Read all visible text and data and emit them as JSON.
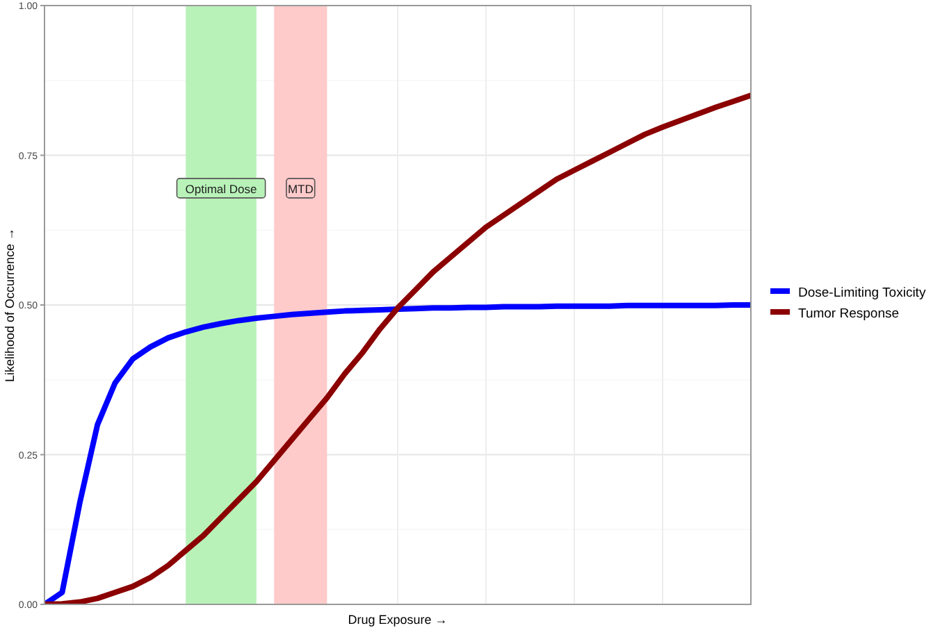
{
  "chart_data": {
    "type": "line",
    "xlabel": "Drug Exposure →",
    "ylabel": "Likelihood of Occurrence →",
    "categories": [
      null,
      null,
      null,
      null,
      null,
      null,
      null,
      null,
      null,
      null,
      null,
      null,
      null,
      null,
      null,
      null,
      null,
      null,
      null,
      null,
      null,
      null,
      null,
      null,
      null,
      null,
      null,
      null,
      null,
      null,
      null,
      null,
      null,
      null,
      null,
      null,
      null,
      null,
      null,
      null,
      null
    ],
    "ylim": [
      0,
      1
    ],
    "yticks": [
      {
        "value": 0,
        "label": "0.00"
      },
      {
        "value": 0.25,
        "label": "0.25"
      },
      {
        "value": 0.5,
        "label": "0.50"
      },
      {
        "value": 0.75,
        "label": "0.75"
      },
      {
        "value": 1,
        "label": "1.00"
      }
    ],
    "grid": true,
    "legend": "right",
    "line_style": "solid",
    "annotations": [
      "Optimal Dose",
      "MTD"
    ],
    "series": [
      {
        "name": "Dose-Limiting Toxicity",
        "color": "#0000ff",
        "values": [
          0,
          0.02,
          0.17,
          0.3,
          0.37,
          0.41,
          0.43,
          0.445,
          0.455,
          0.463,
          0.469,
          0.474,
          0.478,
          0.481,
          0.484,
          0.486,
          0.488,
          0.49,
          0.491,
          0.492,
          0.493,
          0.494,
          0.495,
          0.495,
          0.496,
          0.496,
          0.497,
          0.497,
          0.497,
          0.498,
          0.498,
          0.498,
          0.498,
          0.499,
          0.499,
          0.499,
          0.499,
          0.499,
          0.499,
          0.5,
          0.5
        ]
      },
      {
        "name": "Tumor Response",
        "color": "#8b0000",
        "values": [
          0,
          0.001,
          0.004,
          0.01,
          0.02,
          0.03,
          0.045,
          0.065,
          0.09,
          0.115,
          0.145,
          0.175,
          0.205,
          0.24,
          0.275,
          0.31,
          0.345,
          0.385,
          0.42,
          0.46,
          0.495,
          0.525,
          0.555,
          0.58,
          0.605,
          0.63,
          0.65,
          0.67,
          0.69,
          0.71,
          0.725,
          0.74,
          0.755,
          0.77,
          0.785,
          0.797,
          0.808,
          0.819,
          0.83,
          0.84,
          0.85
        ]
      }
    ]
  }
}
